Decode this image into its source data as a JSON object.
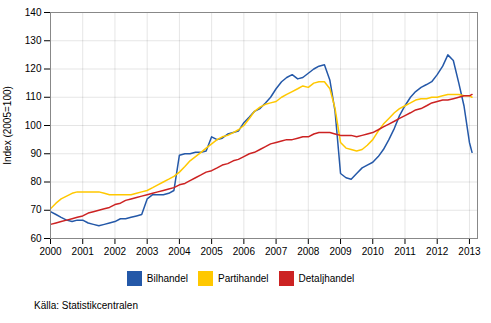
{
  "chart_data": {
    "type": "line",
    "ylabel": "Index (2005=100)",
    "source": "Källa: Statistikcentralen",
    "xlim": [
      2000.0,
      2013.25
    ],
    "xticks": [
      2000,
      2001,
      2002,
      2003,
      2004,
      2005,
      2006,
      2007,
      2008,
      2009,
      2010,
      2011,
      2012,
      2013
    ],
    "ylim": [
      60,
      140
    ],
    "yticks": [
      60,
      70,
      80,
      90,
      100,
      110,
      120,
      130,
      140
    ],
    "grid": true,
    "legend": "bottom",
    "x": [
      2000.0,
      2000.17,
      2000.33,
      2000.5,
      2000.67,
      2000.83,
      2001.0,
      2001.17,
      2001.33,
      2001.5,
      2001.67,
      2001.83,
      2002.0,
      2002.17,
      2002.33,
      2002.5,
      2002.67,
      2002.83,
      2003.0,
      2003.17,
      2003.33,
      2003.5,
      2003.67,
      2003.83,
      2004.0,
      2004.17,
      2004.33,
      2004.5,
      2004.67,
      2004.83,
      2005.0,
      2005.17,
      2005.33,
      2005.5,
      2005.67,
      2005.83,
      2006.0,
      2006.17,
      2006.33,
      2006.5,
      2006.67,
      2006.83,
      2007.0,
      2007.17,
      2007.33,
      2007.5,
      2007.67,
      2007.83,
      2008.0,
      2008.17,
      2008.33,
      2008.5,
      2008.67,
      2008.83,
      2009.0,
      2009.17,
      2009.33,
      2009.5,
      2009.67,
      2009.83,
      2010.0,
      2010.17,
      2010.33,
      2010.5,
      2010.67,
      2010.83,
      2011.0,
      2011.17,
      2011.33,
      2011.5,
      2011.67,
      2011.83,
      2012.0,
      2012.17,
      2012.33,
      2012.5,
      2012.67,
      2012.83,
      2013.0,
      2013.08
    ],
    "series": [
      {
        "name": "Bilhandel",
        "color": "#2458a8",
        "values": [
          69.5,
          68.5,
          67.5,
          66.5,
          66.0,
          66.5,
          66.5,
          65.5,
          65.0,
          64.5,
          65.0,
          65.5,
          66.0,
          67.0,
          67.0,
          67.5,
          68.0,
          68.5,
          74.0,
          75.5,
          75.5,
          75.5,
          76.0,
          77.0,
          89.5,
          90.0,
          90.0,
          90.5,
          90.5,
          91.0,
          96.0,
          95.0,
          95.5,
          97.0,
          97.5,
          98.0,
          101.0,
          103.0,
          105.0,
          106.0,
          108.0,
          110.0,
          113.0,
          115.5,
          117.0,
          118.0,
          116.5,
          117.0,
          118.5,
          120.0,
          121.0,
          121.5,
          116.0,
          105.0,
          83.0,
          81.5,
          81.0,
          83.0,
          85.0,
          86.0,
          87.0,
          89.0,
          91.5,
          95.0,
          99.0,
          103.5,
          107.0,
          110.0,
          112.0,
          113.5,
          114.5,
          115.5,
          118.0,
          121.0,
          125.0,
          123.0,
          115.0,
          107.0,
          94.0,
          90.5
        ]
      },
      {
        "name": "Partihandel",
        "color": "#ffc800",
        "values": [
          70.5,
          72.5,
          74.0,
          75.0,
          76.0,
          76.5,
          76.5,
          76.5,
          76.5,
          76.5,
          76.0,
          75.5,
          75.5,
          75.5,
          75.5,
          75.5,
          76.0,
          76.5,
          77.0,
          78.0,
          79.0,
          80.0,
          81.0,
          82.0,
          83.5,
          85.5,
          87.5,
          89.0,
          90.5,
          92.0,
          93.5,
          95.0,
          96.0,
          96.5,
          97.5,
          98.5,
          100.0,
          102.5,
          105.0,
          106.5,
          107.5,
          108.0,
          108.5,
          110.0,
          111.0,
          112.0,
          113.0,
          114.0,
          113.5,
          115.0,
          115.5,
          115.5,
          113.0,
          106.0,
          94.0,
          92.0,
          91.5,
          91.0,
          91.5,
          93.0,
          95.0,
          98.0,
          100.5,
          102.5,
          104.5,
          106.0,
          107.0,
          108.0,
          109.0,
          109.5,
          109.5,
          110.0,
          110.0,
          110.5,
          111.0,
          111.0,
          111.0,
          110.5,
          110.5,
          110.0
        ]
      },
      {
        "name": "Detaljhandel",
        "color": "#cc2222",
        "values": [
          65.0,
          65.5,
          66.0,
          66.5,
          67.0,
          67.5,
          68.0,
          69.0,
          69.5,
          70.0,
          70.5,
          71.0,
          72.0,
          72.5,
          73.5,
          74.0,
          74.5,
          75.0,
          75.5,
          76.0,
          76.5,
          77.0,
          77.5,
          78.0,
          79.0,
          79.5,
          80.5,
          81.5,
          82.5,
          83.5,
          84.0,
          85.0,
          86.0,
          86.5,
          87.5,
          88.0,
          89.0,
          90.0,
          90.5,
          91.5,
          92.5,
          93.5,
          94.0,
          94.5,
          95.0,
          95.0,
          95.5,
          96.0,
          96.0,
          97.0,
          97.5,
          97.5,
          97.5,
          97.0,
          96.5,
          96.5,
          96.5,
          96.0,
          96.5,
          97.0,
          97.5,
          98.5,
          99.5,
          100.5,
          101.5,
          102.5,
          103.5,
          104.5,
          105.5,
          106.0,
          107.0,
          108.0,
          108.5,
          109.0,
          109.0,
          109.5,
          110.0,
          110.5,
          110.5,
          111.0
        ]
      }
    ]
  }
}
